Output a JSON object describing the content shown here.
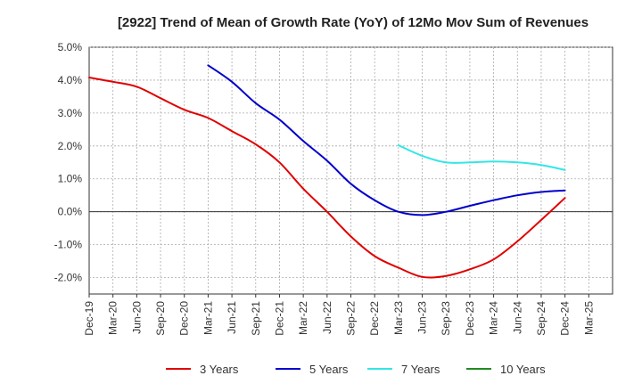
{
  "chart_data": {
    "type": "line",
    "title": "[2922]  Trend of Mean of Growth Rate (YoY) of 12Mo Mov Sum of Revenues",
    "xlabel": "",
    "ylabel": "",
    "ylim": [
      -2.5,
      5.0
    ],
    "yticks": [
      -2.0,
      -1.0,
      0.0,
      1.0,
      2.0,
      3.0,
      4.0,
      5.0
    ],
    "ytick_labels": [
      "-2.0%",
      "-1.0%",
      "0.0%",
      "1.0%",
      "2.0%",
      "3.0%",
      "4.0%",
      "5.0%"
    ],
    "xticks": [
      "Dec-19",
      "Mar-20",
      "Jun-20",
      "Sep-20",
      "Dec-20",
      "Mar-21",
      "Jun-21",
      "Sep-21",
      "Dec-21",
      "Mar-22",
      "Jun-22",
      "Sep-22",
      "Dec-22",
      "Mar-23",
      "Jun-23",
      "Sep-23",
      "Dec-23",
      "Mar-24",
      "Jun-24",
      "Sep-24",
      "Dec-24",
      "Mar-25"
    ],
    "grid": true,
    "legend_position": "bottom",
    "series": [
      {
        "name": "3 Years",
        "color": "#e00000",
        "points": [
          [
            0,
            4.08
          ],
          [
            1,
            3.95
          ],
          [
            2,
            3.8
          ],
          [
            3,
            3.45
          ],
          [
            4,
            3.1
          ],
          [
            5,
            2.85
          ],
          [
            6,
            2.45
          ],
          [
            7,
            2.05
          ],
          [
            8,
            1.5
          ],
          [
            9,
            0.7
          ],
          [
            10,
            0.0
          ],
          [
            11,
            -0.75
          ],
          [
            12,
            -1.35
          ],
          [
            13,
            -1.7
          ],
          [
            14,
            -1.98
          ],
          [
            15,
            -1.95
          ],
          [
            16,
            -1.75
          ],
          [
            17,
            -1.45
          ],
          [
            18,
            -0.9
          ],
          [
            19,
            -0.25
          ],
          [
            20,
            0.42
          ]
        ]
      },
      {
        "name": "5 Years",
        "color": "#0000cc",
        "points": [
          [
            5,
            4.45
          ],
          [
            6,
            3.95
          ],
          [
            7,
            3.3
          ],
          [
            8,
            2.8
          ],
          [
            9,
            2.15
          ],
          [
            10,
            1.55
          ],
          [
            11,
            0.85
          ],
          [
            12,
            0.35
          ],
          [
            13,
            0.0
          ],
          [
            14,
            -0.1
          ],
          [
            15,
            0.0
          ],
          [
            16,
            0.18
          ],
          [
            17,
            0.35
          ],
          [
            18,
            0.5
          ],
          [
            19,
            0.6
          ],
          [
            20,
            0.65
          ]
        ]
      },
      {
        "name": "7 Years",
        "color": "#33e6e6",
        "points": [
          [
            13,
            2.02
          ],
          [
            14,
            1.7
          ],
          [
            15,
            1.5
          ],
          [
            16,
            1.5
          ],
          [
            17,
            1.53
          ],
          [
            18,
            1.5
          ],
          [
            19,
            1.42
          ],
          [
            20,
            1.27
          ]
        ]
      },
      {
        "name": "10 Years",
        "color": "#228b22",
        "points": []
      }
    ]
  }
}
